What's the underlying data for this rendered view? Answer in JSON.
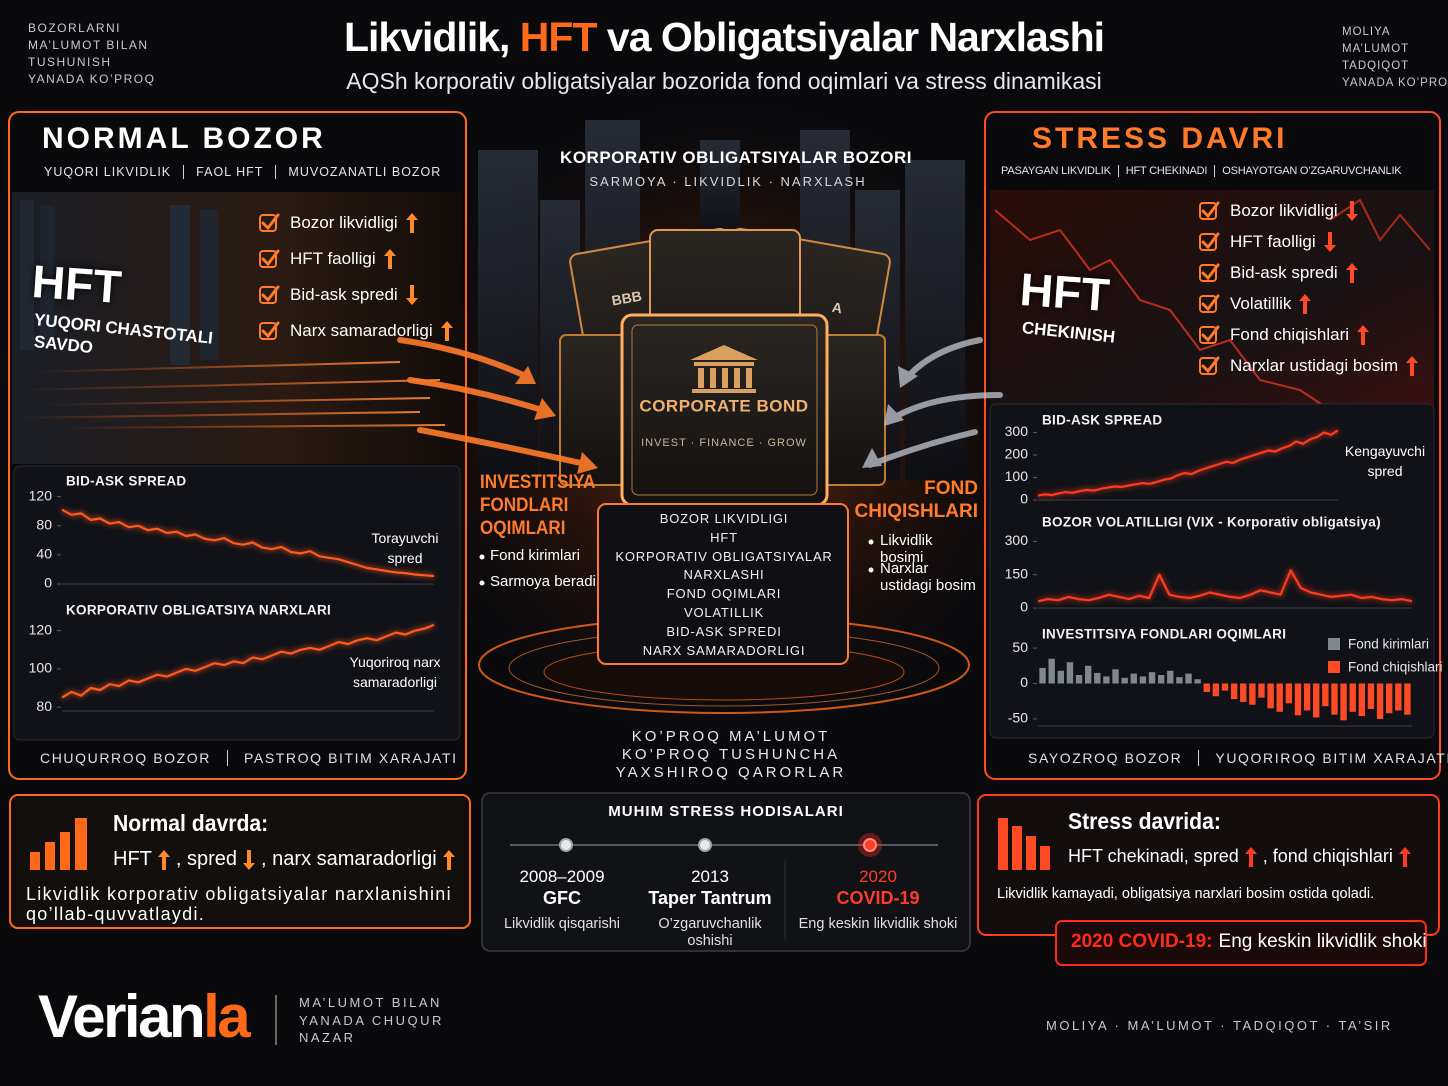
{
  "header": {
    "corner_left": [
      "BOZORLARNI",
      "MA’LUMOT BILAN",
      "TUSHUNISH",
      "YANADA KO’PROQ"
    ],
    "title_start": "Likvidlik, ",
    "title_highlight": "HFT",
    "title_end": " va Obligatsiyalar Narxlashi",
    "subtitle": "AQSh korporativ obligatsiyalar bozorida fond oqimlari va stress dinamikasi",
    "corner_right": [
      "MOLIYA",
      "MA’LUMOT",
      "TADQIQOT",
      "YANADA KO’PROQ"
    ]
  },
  "left_panel": {
    "title": "NORMAL BOZOR",
    "tags": [
      "YUQORI LIKVIDLIK",
      "FAOL HFT",
      "MUVOZANATLI BOZOR"
    ],
    "hero": "HFT",
    "hero_sub": [
      "YUQORI CHASTOTALI",
      "SAVDO"
    ],
    "checklist": [
      {
        "label": "Bozor likvidligi",
        "trend": "up"
      },
      {
        "label": "HFT faolligi",
        "trend": "up"
      },
      {
        "label": "Bid-ask spredi",
        "trend": "down"
      },
      {
        "label": "Narx samaradorligi",
        "trend": "up"
      }
    ],
    "footer": [
      "CHUQURROQ BOZOR",
      "PASTROQ BITIM XARAJATI"
    ]
  },
  "center": {
    "title": "KORPORATIV OBLIGATSIYALAR BOZORI",
    "tags": "SARMOYA · LIKVIDLIK · NARXLASH",
    "ratings": [
      "BBB",
      "A"
    ],
    "bond_title": "CORPORATE BOND",
    "bond_tagline": "INVEST · FINANCE · GROW",
    "screen": [
      "BOZOR LIKVIDLIGI",
      "HFT",
      "KORPORATIV OBLIGATSIYALAR",
      "NARXLASHI",
      "FOND OQIMLARI",
      "VOLATILLIK",
      "BID-ASK SPREDI",
      "NARX SAMARADORLIGI"
    ],
    "slogan": [
      "KO’PROQ MA’LUMOT",
      "KO’PROQ TUSHUNCHA",
      "YAXSHIROQ QARORLAR"
    ],
    "inflows": {
      "title": [
        "INVESTITSIYA",
        "FONDLARI",
        "OQIMLARI"
      ],
      "bullets": [
        "Fond kirimlari",
        "Sarmoya beradi"
      ]
    },
    "outflows": {
      "title": [
        "FOND",
        "CHIQISHLARI"
      ],
      "bullets": [
        "Likvidlik bosimi",
        "Narxlar ustidagi bosim"
      ]
    }
  },
  "right_panel": {
    "title": "STRESS DAVRI",
    "tags": [
      "PASAYGAN LIKVIDLIK",
      "HFT CHEKINADI",
      "OSHAYOTGAN O’ZGARUVCHANLIK"
    ],
    "hero": "HFT",
    "hero_sub": [
      "CHEKINISH"
    ],
    "checklist": [
      {
        "label": "Bozor likvidligi",
        "trend": "down"
      },
      {
        "label": "HFT faolligi",
        "trend": "down"
      },
      {
        "label": "Bid-ask spredi",
        "trend": "up"
      },
      {
        "label": "Volatillik",
        "trend": "up"
      },
      {
        "label": "Fond chiqishlari",
        "trend": "up"
      },
      {
        "label": "Narxlar ustidagi bosim",
        "trend": "up"
      }
    ],
    "footer": [
      "SAYOZROQ BOZOR",
      "YUQORIROQ BITIM XARAJATI"
    ]
  },
  "chart_data": [
    {
      "type": "line",
      "title": "BID-ASK SPREAD",
      "annotation": "Torayuvchi spred",
      "color": "#ff5a1f",
      "grid": false,
      "ylim": [
        0,
        125
      ],
      "yticks": [
        0,
        40,
        80,
        120
      ],
      "values": [
        102,
        95,
        97,
        88,
        90,
        83,
        85,
        78,
        80,
        74,
        76,
        70,
        72,
        66,
        68,
        62,
        60,
        63,
        56,
        54,
        57,
        50,
        48,
        51,
        44,
        42,
        45,
        38,
        36,
        34,
        30,
        26,
        22,
        20,
        18,
        16,
        15,
        13,
        12,
        11
      ]
    },
    {
      "type": "line",
      "title": "KORPORATIV OBLIGATSIYA NARXLARI",
      "annotation": "Yuqoriroq narx samaradorligi",
      "color": "#ff5a1f",
      "grid": false,
      "ylim": [
        78,
        124
      ],
      "yticks": [
        80,
        100,
        120
      ],
      "values": [
        85,
        88,
        86,
        90,
        89,
        92,
        91,
        94,
        93,
        95,
        97,
        96,
        98,
        100,
        99,
        101,
        103,
        102,
        104,
        103,
        106,
        105,
        107,
        109,
        108,
        110,
        111,
        110,
        112,
        114,
        113,
        115,
        116,
        115,
        117,
        119,
        118,
        120,
        121,
        123
      ]
    },
    {
      "type": "line",
      "title": "BID-ASK SPREAD",
      "annotation": "Kengayuvchi spred",
      "color": "#ff3b1f",
      "grid": false,
      "ylim": [
        0,
        320
      ],
      "yticks": [
        0,
        100,
        200,
        300
      ],
      "values": [
        20,
        25,
        22,
        30,
        35,
        32,
        40,
        45,
        42,
        50,
        55,
        60,
        58,
        65,
        70,
        75,
        72,
        80,
        90,
        95,
        110,
        120,
        115,
        130,
        140,
        150,
        160,
        170,
        165,
        180,
        190,
        200,
        210,
        220,
        215,
        230,
        240,
        260,
        250,
        270,
        280,
        300,
        290,
        310
      ]
    },
    {
      "type": "line",
      "title": "BOZOR VOLATILLIGI (VIX - Korporativ obligatsiya)",
      "color": "#ff3b1f",
      "grid": false,
      "ylim": [
        0,
        320
      ],
      "yticks": [
        0,
        150,
        300
      ],
      "values": [
        30,
        40,
        35,
        50,
        40,
        35,
        45,
        60,
        50,
        40,
        55,
        45,
        150,
        60,
        50,
        45,
        55,
        70,
        60,
        50,
        45,
        60,
        80,
        70,
        60,
        170,
        90,
        70,
        60,
        50,
        55,
        60,
        45,
        50,
        40,
        35,
        40,
        30
      ]
    },
    {
      "type": "bar",
      "title": "INVESTITSIYA FONDLARI OQIMLARI",
      "grid": false,
      "ylim": [
        -60,
        60
      ],
      "yticks": [
        -50,
        0,
        50
      ],
      "categories": [
        null,
        null,
        null,
        null,
        null,
        null,
        null,
        null,
        null,
        null,
        null,
        null,
        null,
        null,
        null,
        null,
        null,
        null,
        null,
        null,
        null,
        null,
        null,
        null,
        null,
        null,
        null,
        null,
        null,
        null,
        null,
        null,
        null,
        null,
        null,
        null,
        null,
        null,
        null,
        null,
        null
      ],
      "series": [
        {
          "name": "Fond kirimlari",
          "color": "#7f8790",
          "values": [
            22,
            35,
            18,
            30,
            12,
            25,
            15,
            10,
            20,
            8,
            14,
            10,
            16,
            12,
            18,
            9,
            14,
            6,
            null,
            null,
            null,
            null,
            null,
            null,
            null,
            null,
            null,
            null,
            null,
            null,
            null,
            null,
            null,
            null,
            null,
            null,
            null,
            null,
            null,
            null,
            null
          ]
        },
        {
          "name": "Fond chiqishlari",
          "color": "#ff4a26",
          "values": [
            null,
            null,
            null,
            null,
            null,
            null,
            null,
            null,
            null,
            null,
            null,
            null,
            null,
            null,
            null,
            null,
            null,
            null,
            -12,
            -18,
            -10,
            -22,
            -26,
            -30,
            -20,
            -35,
            -40,
            -28,
            -45,
            -38,
            -48,
            -32,
            -44,
            -52,
            -40,
            -46,
            -36,
            -50,
            -42,
            -38,
            -44
          ]
        }
      ]
    }
  ],
  "summaries": {
    "normal": {
      "title": "Normal davrda:",
      "items": [
        {
          "label": "HFT",
          "trend": "up"
        },
        {
          "label": ", spred",
          "trend": "down"
        },
        {
          "label": ", narx samaradorligi",
          "trend": "up"
        }
      ],
      "body": "Likvidlik korporativ obligatsiyalar narxlanishini qo’llab-quvvatlaydi."
    },
    "stress": {
      "title": "Stress davrida:",
      "items": [
        {
          "label": "HFT chekinadi, spred",
          "trend": "up"
        },
        {
          "label": ", fond chiqishlari",
          "trend": "up"
        }
      ],
      "body": "Likvidlik kamayadi, obligatsiya narxlari bosim ostida qoladi.",
      "callout_highlight": "2020 COVID-19:",
      "callout_text": "Eng keskin likvidlik shoki"
    }
  },
  "events": {
    "title": "MUHIM STRESS HODISALARI",
    "items": [
      {
        "date": "2008–2009",
        "name": "GFC",
        "desc": "Likvidlik qisqarishi",
        "highlight": false
      },
      {
        "date": "2013",
        "name": "Taper Tantrum",
        "desc": "O’zgaruvchanlik oshishi",
        "highlight": false
      },
      {
        "date": "2020",
        "name": "COVID-19",
        "desc": "Eng keskin likvidlik shoki",
        "highlight": true
      }
    ]
  },
  "footer": {
    "logo_start": "Verian",
    "logo_highlight": "la",
    "tagline": [
      "MA’LUMOT BILAN",
      "YANADA CHUQUR",
      "NAZAR"
    ],
    "keywords": "MOLIYA · MA’LUMOT · TADQIQOT · TA’SIR"
  }
}
